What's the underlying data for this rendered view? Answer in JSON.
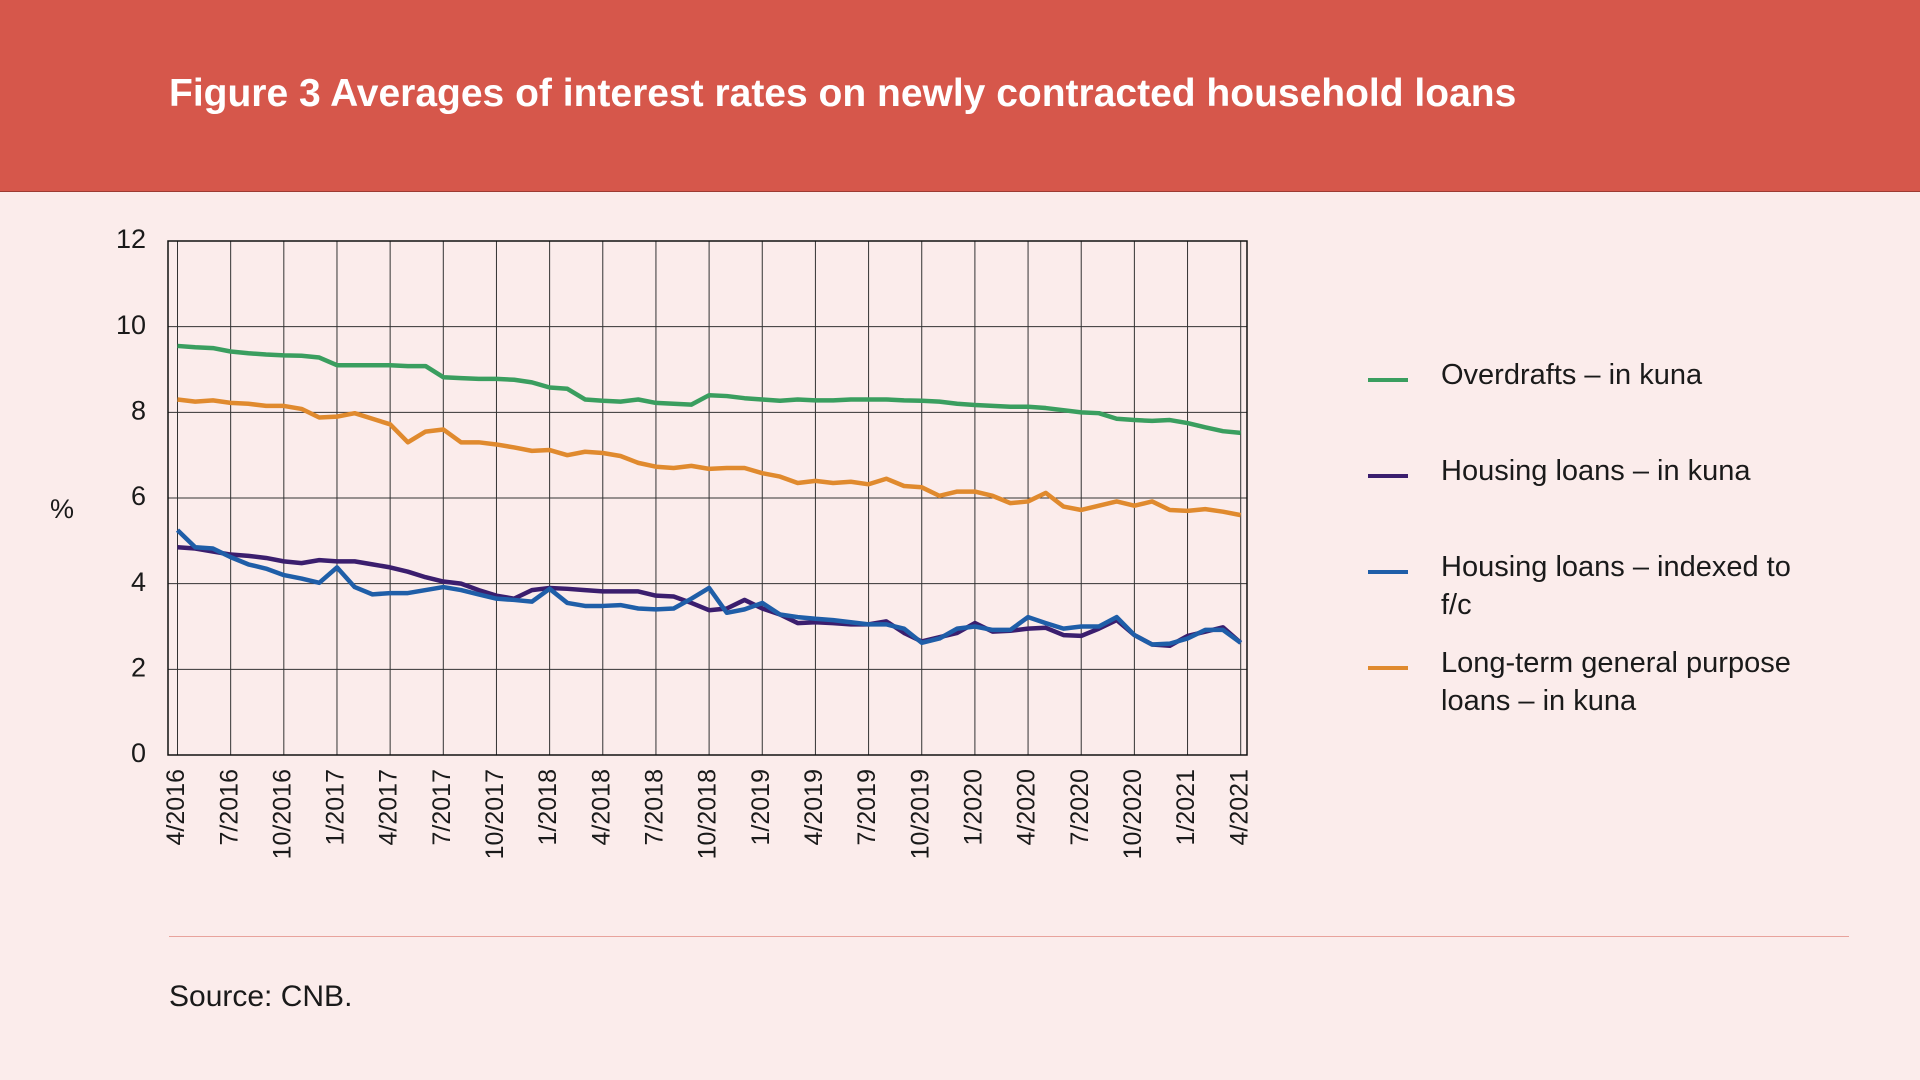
{
  "chart_data": {
    "type": "line",
    "title": "Figure 3 Averages of interest rates on newly contracted household loans",
    "ylabel": "%",
    "source": "Source: CNB.",
    "categories": [
      "4/2016",
      null,
      null,
      "7/2016",
      null,
      null,
      "10/2016",
      null,
      null,
      "1/2017",
      null,
      null,
      "4/2017",
      null,
      null,
      "7/2017",
      null,
      null,
      "10/2017",
      null,
      null,
      "1/2018",
      null,
      null,
      "4/2018",
      null,
      null,
      "7/2018",
      null,
      null,
      "10/2018",
      null,
      null,
      "1/2019",
      null,
      null,
      "4/2019",
      null,
      null,
      "7/2019",
      null,
      null,
      "10/2019",
      null,
      null,
      "1/2020",
      null,
      null,
      "4/2020",
      null,
      null,
      "7/2020",
      null,
      null,
      "10/2020",
      null,
      null,
      "1/2021",
      null,
      null,
      "4/2021"
    ],
    "series": [
      {
        "name": "Overdrafts – in kuna",
        "color": "#3a9e5f",
        "values": [
          9.55,
          9.52,
          9.5,
          9.42,
          9.38,
          9.35,
          9.33,
          9.32,
          9.28,
          9.1,
          9.1,
          9.1,
          9.1,
          9.08,
          9.08,
          8.82,
          8.8,
          8.78,
          8.78,
          8.76,
          8.7,
          8.58,
          8.55,
          8.3,
          8.27,
          8.25,
          8.3,
          8.22,
          8.2,
          8.18,
          8.4,
          8.38,
          8.33,
          8.3,
          8.27,
          8.3,
          8.28,
          8.28,
          8.3,
          8.3,
          8.3,
          8.28,
          8.27,
          8.25,
          8.2,
          8.17,
          8.15,
          8.13,
          8.13,
          8.1,
          8.05,
          8.0,
          7.98,
          7.85,
          7.82,
          7.8,
          7.82,
          7.75,
          7.65,
          7.56,
          7.52
        ]
      },
      {
        "name": "Housing loans – in kuna",
        "color": "#3b1e6e",
        "values": [
          4.85,
          4.82,
          4.75,
          4.68,
          4.65,
          4.6,
          4.52,
          4.48,
          4.55,
          4.52,
          4.52,
          4.45,
          4.38,
          4.28,
          4.15,
          4.05,
          4.0,
          3.85,
          3.72,
          3.65,
          3.85,
          3.9,
          3.88,
          3.85,
          3.82,
          3.82,
          3.82,
          3.72,
          3.7,
          3.55,
          3.38,
          3.42,
          3.62,
          3.42,
          3.28,
          3.08,
          3.1,
          3.08,
          3.05,
          3.05,
          3.12,
          2.85,
          2.65,
          2.75,
          2.85,
          3.08,
          2.88,
          2.9,
          2.95,
          2.97,
          2.8,
          2.78,
          2.95,
          3.15,
          2.8,
          2.58,
          2.55,
          2.78,
          2.88,
          2.98,
          2.62
        ]
      },
      {
        "name": "Housing loans – indexed to f/c",
        "color": "#1f5ea8",
        "values": [
          5.25,
          4.85,
          4.82,
          4.62,
          4.45,
          4.35,
          4.2,
          4.12,
          4.02,
          4.38,
          3.92,
          3.75,
          3.78,
          3.78,
          3.85,
          3.92,
          3.85,
          3.75,
          3.65,
          3.62,
          3.58,
          3.88,
          3.55,
          3.48,
          3.48,
          3.5,
          3.42,
          3.4,
          3.42,
          3.65,
          3.9,
          3.32,
          3.4,
          3.55,
          3.28,
          3.22,
          3.18,
          3.15,
          3.1,
          3.05,
          3.05,
          2.95,
          2.62,
          2.72,
          2.95,
          3.0,
          2.92,
          2.92,
          3.22,
          3.08,
          2.95,
          3.0,
          3.0,
          3.22,
          2.8,
          2.58,
          2.6,
          2.72,
          2.92,
          2.92,
          2.62
        ]
      },
      {
        "name": "Long-term general purpose loans – in kuna",
        "color": "#e08a2e",
        "values": [
          8.3,
          8.25,
          8.28,
          8.22,
          8.2,
          8.15,
          8.15,
          8.08,
          7.88,
          7.9,
          7.98,
          7.85,
          7.72,
          7.3,
          7.55,
          7.6,
          7.3,
          7.3,
          7.25,
          7.18,
          7.1,
          7.12,
          7.0,
          7.08,
          7.05,
          6.98,
          6.82,
          6.73,
          6.7,
          6.75,
          6.68,
          6.7,
          6.7,
          6.58,
          6.5,
          6.35,
          6.4,
          6.35,
          6.38,
          6.32,
          6.45,
          6.28,
          6.25,
          6.05,
          6.15,
          6.15,
          6.05,
          5.88,
          5.92,
          6.12,
          5.8,
          5.72,
          5.82,
          5.92,
          5.82,
          5.92,
          5.72,
          5.7,
          5.74,
          5.68,
          5.6
        ]
      }
    ],
    "ylim": [
      0,
      12
    ],
    "yticks": [
      0,
      2,
      4,
      6,
      8,
      10,
      12
    ],
    "grid": true,
    "legend": "right"
  }
}
